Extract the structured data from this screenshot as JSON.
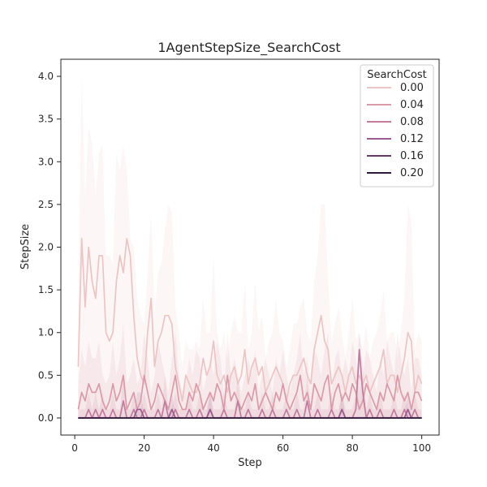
{
  "chart_data": {
    "type": "line",
    "title": "1AgentStepSize_SearchCost",
    "xlabel": "Step",
    "ylabel": "StepSize",
    "xlim": [
      -4,
      105
    ],
    "ylim": [
      -0.2,
      4.2
    ],
    "x_ticks": [
      0,
      20,
      40,
      60,
      80,
      100
    ],
    "y_ticks": [
      0.0,
      0.5,
      1.0,
      1.5,
      2.0,
      2.5,
      3.0,
      3.5,
      4.0
    ],
    "x_tick_labels": [
      "0",
      "20",
      "40",
      "60",
      "80",
      "100"
    ],
    "y_tick_labels": [
      "0.0",
      "0.5",
      "1.0",
      "1.5",
      "2.0",
      "2.5",
      "3.0",
      "3.5",
      "4.0"
    ],
    "grid": false,
    "legend": {
      "title": "SearchCost",
      "placement": "top-right"
    },
    "x": [
      1,
      2,
      3,
      4,
      5,
      6,
      7,
      8,
      9,
      10,
      11,
      12,
      13,
      14,
      15,
      16,
      17,
      18,
      19,
      20,
      21,
      22,
      23,
      24,
      25,
      26,
      27,
      28,
      29,
      30,
      31,
      32,
      33,
      34,
      35,
      36,
      37,
      38,
      39,
      40,
      41,
      42,
      43,
      44,
      45,
      46,
      47,
      48,
      49,
      50,
      51,
      52,
      53,
      54,
      55,
      56,
      57,
      58,
      59,
      60,
      61,
      62,
      63,
      64,
      65,
      66,
      67,
      68,
      69,
      70,
      71,
      72,
      73,
      74,
      75,
      76,
      77,
      78,
      79,
      80,
      81,
      82,
      83,
      84,
      85,
      86,
      87,
      88,
      89,
      90,
      91,
      92,
      93,
      94,
      95,
      96,
      97,
      98,
      99,
      100
    ],
    "series": [
      {
        "name": "0.00",
        "color": "#ebc5c4",
        "values": [
          0.6,
          2.1,
          1.3,
          2.0,
          1.6,
          1.4,
          1.9,
          1.9,
          1.0,
          0.9,
          1.0,
          1.6,
          1.9,
          1.7,
          2.1,
          1.9,
          1.2,
          0.7,
          0.5,
          0.4,
          1.0,
          1.4,
          0.6,
          0.9,
          1.0,
          1.2,
          1.2,
          1.1,
          0.6,
          0.4,
          0.2,
          0.5,
          0.4,
          0.3,
          0.3,
          0.4,
          0.7,
          0.5,
          0.6,
          0.9,
          0.5,
          0.4,
          0.5,
          0.3,
          0.5,
          0.6,
          0.4,
          0.5,
          0.8,
          0.4,
          0.6,
          0.7,
          0.5,
          0.6,
          0.3,
          0.4,
          0.5,
          0.6,
          0.5,
          0.4,
          0.2,
          0.4,
          0.5,
          0.5,
          0.6,
          0.7,
          0.5,
          0.4,
          0.8,
          1.0,
          1.2,
          0.9,
          0.8,
          0.4,
          0.5,
          0.6,
          0.5,
          0.3,
          0.5,
          0.6,
          0.4,
          0.5,
          0.4,
          0.5,
          0.3,
          0.4,
          0.5,
          0.6,
          0.8,
          0.4,
          0.5,
          0.5,
          0.3,
          0.5,
          0.7,
          1.0,
          0.9,
          0.3,
          0.5,
          0.4
        ],
        "band_upper": [
          1.4,
          4.0,
          2.6,
          3.4,
          3.2,
          2.6,
          3.1,
          3.2,
          1.9,
          1.9,
          1.8,
          3.1,
          2.9,
          3.2,
          2.9,
          2.1,
          2.0,
          1.4,
          1.2,
          1.1,
          1.7,
          2.4,
          1.2,
          1.7,
          1.8,
          2.2,
          2.5,
          2.4,
          1.3,
          1.0,
          0.6,
          0.9,
          0.8,
          0.8,
          0.9,
          0.8,
          1.4,
          1.0,
          1.0,
          1.9,
          1.0,
          0.8,
          1.0,
          0.7,
          1.0,
          1.2,
          1.0,
          1.0,
          1.6,
          0.8,
          1.0,
          1.6,
          1.0,
          1.2,
          0.7,
          0.9,
          1.0,
          1.4,
          1.0,
          0.9,
          0.6,
          0.8,
          1.1,
          1.1,
          1.3,
          1.4,
          1.0,
          0.9,
          1.6,
          1.9,
          2.5,
          2.5,
          1.6,
          0.9,
          1.1,
          1.3,
          1.0,
          0.7,
          1.0,
          1.4,
          0.9,
          1.0,
          0.8,
          1.1,
          0.7,
          0.9,
          1.0,
          1.2,
          1.5,
          0.9,
          1.0,
          1.0,
          0.7,
          1.0,
          1.4,
          2.5,
          2.3,
          0.8,
          1.0,
          0.9
        ]
      },
      {
        "name": "0.04",
        "color": "#d99ba9",
        "values": [
          0.1,
          0.3,
          0.2,
          0.4,
          0.3,
          0.3,
          0.4,
          0.2,
          0.1,
          0.2,
          0.4,
          0.2,
          0.3,
          0.5,
          0.1,
          0.2,
          0.3,
          0.1,
          0.2,
          0.5,
          0.3,
          0.1,
          0.2,
          0.4,
          0.3,
          0.2,
          0.1,
          0.3,
          0.5,
          0.2,
          0.1,
          0.1,
          0.3,
          0.2,
          0.4,
          0.3,
          0.1,
          0.2,
          0.3,
          0.2,
          0.4,
          0.3,
          0.1,
          0.5,
          0.2,
          0.3,
          0.2,
          0.1,
          0.2,
          0.3,
          0.2,
          0.4,
          0.1,
          0.2,
          0.3,
          0.2,
          0.1,
          0.3,
          0.2,
          0.4,
          0.2,
          0.1,
          0.2,
          0.3,
          0.5,
          0.2,
          0.3,
          0.1,
          0.4,
          0.3,
          0.2,
          0.4,
          0.5,
          0.1,
          0.3,
          0.4,
          0.2,
          0.3,
          0.2,
          0.4,
          0.3,
          0.1,
          0.2,
          0.4,
          0.3,
          0.2,
          0.1,
          0.3,
          0.2,
          0.4,
          0.3,
          0.2,
          0.5,
          0.3,
          0.2,
          0.3,
          0.1,
          0.3,
          0.3,
          0.2
        ],
        "band_upper": [
          0.4,
          0.8,
          0.6,
          0.9,
          0.7,
          0.7,
          0.9,
          0.5,
          0.4,
          0.5,
          0.9,
          0.5,
          0.7,
          1.1,
          0.4,
          0.5,
          0.7,
          0.4,
          0.5,
          1.0,
          0.7,
          0.3,
          0.5,
          0.9,
          0.7,
          0.5,
          0.3,
          0.7,
          1.0,
          0.5,
          0.3,
          0.4,
          0.7,
          0.5,
          0.8,
          0.7,
          0.3,
          0.5,
          0.7,
          0.5,
          0.9,
          0.7,
          0.3,
          1.0,
          0.5,
          0.7,
          0.5,
          0.3,
          0.5,
          0.7,
          0.5,
          0.8,
          0.3,
          0.5,
          0.7,
          0.5,
          0.3,
          0.7,
          0.5,
          0.8,
          0.5,
          0.3,
          0.5,
          0.7,
          1.0,
          0.5,
          0.7,
          0.3,
          0.8,
          0.7,
          0.5,
          0.8,
          1.0,
          0.3,
          0.7,
          0.8,
          0.5,
          0.7,
          0.5,
          0.9,
          0.7,
          0.3,
          0.5,
          0.8,
          0.7,
          0.5,
          0.3,
          0.7,
          0.5,
          0.9,
          0.7,
          0.5,
          1.0,
          0.7,
          0.5,
          0.7,
          0.3,
          0.7,
          0.7,
          0.5
        ]
      },
      {
        "name": "0.08",
        "color": "#c17b9c",
        "values": [
          0,
          0,
          0,
          0.1,
          0,
          0.1,
          0,
          0.1,
          0,
          0,
          0.1,
          0,
          0,
          0.2,
          0,
          0,
          0.1,
          0,
          0,
          0.1,
          0,
          0,
          0,
          0.1,
          0,
          0.2,
          0,
          0,
          0.1,
          0,
          0,
          0,
          0.1,
          0,
          0,
          0.1,
          0,
          0,
          0.1,
          0,
          0,
          0,
          0.1,
          0,
          0,
          0,
          0.2,
          0,
          0,
          0.1,
          0,
          0,
          0,
          0.1,
          0,
          0,
          0.1,
          0,
          0,
          0,
          0.1,
          0,
          0,
          0.1,
          0,
          0,
          0.2,
          0,
          0,
          0.1,
          0,
          0,
          0,
          0.1,
          0,
          0,
          0.1,
          0,
          0,
          0,
          0.1,
          0.8,
          0.3,
          0,
          0.1,
          0,
          0,
          0.1,
          0,
          0,
          0,
          0.1,
          0,
          0,
          0.1,
          0,
          0,
          0.1,
          0,
          0
        ],
        "band_upper": [
          0.1,
          0.1,
          0.1,
          0.3,
          0.1,
          0.3,
          0.1,
          0.3,
          0.1,
          0.1,
          0.3,
          0.1,
          0.1,
          0.5,
          0.1,
          0.1,
          0.3,
          0.1,
          0.1,
          0.3,
          0.1,
          0.1,
          0.1,
          0.3,
          0.1,
          0.5,
          0.1,
          0.1,
          0.3,
          0.1,
          0.1,
          0.1,
          0.3,
          0.1,
          0.1,
          0.3,
          0.1,
          0.1,
          0.3,
          0.1,
          0.1,
          0.1,
          0.3,
          0.1,
          0.1,
          0.1,
          0.5,
          0.1,
          0.1,
          0.3,
          0.1,
          0.1,
          0.1,
          0.3,
          0.1,
          0.1,
          0.3,
          0.1,
          0.1,
          0.1,
          0.3,
          0.1,
          0.1,
          0.3,
          0.1,
          0.1,
          0.5,
          0.1,
          0.1,
          0.3,
          0.1,
          0.1,
          0.1,
          0.3,
          0.1,
          0.1,
          0.3,
          0.1,
          0.1,
          0.1,
          0.3,
          1.0,
          0.6,
          0.1,
          0.3,
          0.1,
          0.1,
          0.3,
          0.1,
          0.1,
          0.1,
          0.3,
          0.1,
          0.1,
          0.3,
          0.1,
          0.1,
          0.3,
          0.1,
          0.1
        ]
      },
      {
        "name": "0.12",
        "color": "#9d5a8f",
        "values": [
          0,
          0,
          0,
          0,
          0,
          0,
          0,
          0,
          0,
          0,
          0,
          0,
          0,
          0,
          0,
          0,
          0,
          0.1,
          0.1,
          0,
          0,
          0,
          0,
          0,
          0,
          0,
          0,
          0.1,
          0,
          0,
          0,
          0,
          0,
          0,
          0,
          0,
          0,
          0,
          0.1,
          0,
          0,
          0,
          0,
          0,
          0,
          0,
          0,
          0,
          0,
          0,
          0,
          0,
          0,
          0,
          0,
          0,
          0,
          0,
          0,
          0,
          0,
          0,
          0,
          0,
          0,
          0,
          0,
          0,
          0,
          0,
          0,
          0,
          0,
          0,
          0,
          0,
          0.1,
          0,
          0,
          0,
          0,
          0,
          0,
          0,
          0,
          0,
          0,
          0,
          0,
          0,
          0,
          0,
          0,
          0,
          0,
          0.1,
          0,
          0,
          0,
          0
        ],
        "band_upper": [
          0.02,
          0.02,
          0.02,
          0.02,
          0.02,
          0.02,
          0.02,
          0.02,
          0.02,
          0.02,
          0.02,
          0.02,
          0.02,
          0.02,
          0.02,
          0.02,
          0.02,
          0.3,
          0.3,
          0.02,
          0.02,
          0.02,
          0.02,
          0.02,
          0.02,
          0.02,
          0.02,
          0.3,
          0.02,
          0.02,
          0.02,
          0.02,
          0.02,
          0.02,
          0.02,
          0.02,
          0.02,
          0.02,
          0.3,
          0.02,
          0.02,
          0.02,
          0.02,
          0.02,
          0.02,
          0.02,
          0.02,
          0.02,
          0.02,
          0.02,
          0.02,
          0.02,
          0.02,
          0.02,
          0.02,
          0.02,
          0.02,
          0.02,
          0.02,
          0.02,
          0.02,
          0.02,
          0.02,
          0.02,
          0.02,
          0.02,
          0.02,
          0.02,
          0.02,
          0.02,
          0.02,
          0.02,
          0.02,
          0.02,
          0.02,
          0.02,
          0.3,
          0.02,
          0.02,
          0.02,
          0.02,
          0.02,
          0.02,
          0.02,
          0.02,
          0.02,
          0.02,
          0.02,
          0.02,
          0.02,
          0.02,
          0.02,
          0.02,
          0.02,
          0.02,
          0.3,
          0.02,
          0.02,
          0.02,
          0.02
        ]
      },
      {
        "name": "0.16",
        "color": "#6b3a6e",
        "values": [
          0,
          0,
          0,
          0,
          0,
          0,
          0,
          0,
          0,
          0,
          0,
          0,
          0,
          0,
          0,
          0,
          0,
          0,
          0,
          0,
          0,
          0,
          0,
          0,
          0,
          0,
          0,
          0,
          0,
          0,
          0,
          0,
          0,
          0,
          0,
          0,
          0,
          0,
          0,
          0,
          0,
          0,
          0,
          0,
          0,
          0,
          0,
          0,
          0,
          0,
          0,
          0,
          0,
          0,
          0,
          0,
          0,
          0,
          0,
          0,
          0,
          0,
          0,
          0,
          0,
          0,
          0,
          0,
          0,
          0,
          0,
          0,
          0,
          0,
          0,
          0,
          0,
          0,
          0,
          0,
          0,
          0,
          0,
          0,
          0,
          0,
          0,
          0,
          0,
          0,
          0,
          0,
          0,
          0,
          0,
          0,
          0,
          0,
          0,
          0
        ],
        "band_upper": []
      },
      {
        "name": "0.20",
        "color": "#2e1a3c",
        "values": [
          0,
          0,
          0,
          0,
          0,
          0,
          0,
          0,
          0,
          0,
          0,
          0,
          0,
          0,
          0,
          0,
          0,
          0,
          0,
          0,
          0,
          0,
          0,
          0,
          0,
          0,
          0,
          0,
          0,
          0,
          0,
          0,
          0,
          0,
          0,
          0,
          0,
          0,
          0,
          0,
          0,
          0,
          0,
          0,
          0,
          0,
          0,
          0,
          0,
          0,
          0,
          0,
          0,
          0,
          0,
          0,
          0,
          0,
          0,
          0,
          0,
          0,
          0,
          0,
          0,
          0,
          0,
          0,
          0,
          0,
          0,
          0,
          0,
          0,
          0,
          0,
          0,
          0,
          0,
          0,
          0,
          0,
          0,
          0,
          0,
          0,
          0,
          0,
          0,
          0,
          0,
          0,
          0,
          0,
          0,
          0,
          0,
          0,
          0,
          0
        ],
        "band_upper": []
      }
    ]
  }
}
